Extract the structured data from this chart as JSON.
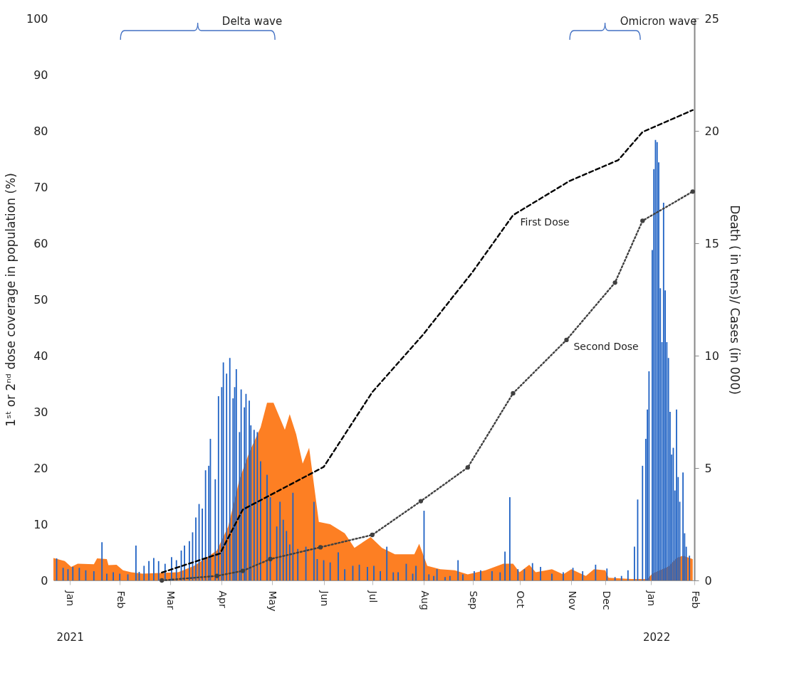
{
  "chart_data": {
    "type": "bar",
    "xlim": [
      "2021-01-01",
      "2022-02-01"
    ],
    "xticks": [
      {
        "value": "2021-01-11",
        "label": "Jan"
      },
      {
        "value": "2021-02-11",
        "label": "Feb"
      },
      {
        "value": "2021-03-14",
        "label": "Mar"
      },
      {
        "value": "2021-04-15",
        "label": "Apr"
      },
      {
        "value": "2021-05-16",
        "label": "May"
      },
      {
        "value": "2021-06-17",
        "label": "Jun"
      },
      {
        "value": "2021-07-17",
        "label": "Jul"
      },
      {
        "value": "2021-08-18",
        "label": "Aug"
      },
      {
        "value": "2021-09-17",
        "label": "Sep"
      },
      {
        "value": "2021-10-16",
        "label": "Oct"
      },
      {
        "value": "2021-11-17",
        "label": "Nov"
      },
      {
        "value": "2021-12-08",
        "label": "Dec"
      },
      {
        "value": "2022-01-05",
        "label": "Jan"
      },
      {
        "value": "2022-02-01",
        "label": "Feb"
      }
    ],
    "ylabel": "1ˢᵗ or 2ⁿᵈ dose coverage in population (%)",
    "y2label": "Death ( in tens)/ Cases (in 000)",
    "ylim": [
      0,
      100
    ],
    "yticks": [
      0,
      10,
      20,
      30,
      40,
      50,
      60,
      70,
      80,
      90,
      100
    ],
    "y2lim": [
      0,
      25
    ],
    "y2ticks": [
      0,
      5,
      10,
      15,
      20,
      25
    ],
    "series": [
      {
        "type": "area",
        "axis": "y2",
        "color": "#fd7f23",
        "x": [
          "2021-01-01",
          "2021-01-08",
          "2021-01-12",
          "2021-01-16",
          "2021-01-26",
          "2021-01-28",
          "2021-02-03",
          "2021-02-04",
          "2021-02-09",
          "2021-02-13",
          "2021-02-18",
          "2021-02-25",
          "2021-03-19",
          "2021-03-29",
          "2021-04-12",
          "2021-04-19",
          "2021-04-26",
          "2021-05-02",
          "2021-05-09",
          "2021-05-13",
          "2021-05-17",
          "2021-05-24",
          "2021-05-27",
          "2021-05-31",
          "2021-06-04",
          "2021-06-08",
          "2021-06-14",
          "2021-06-21",
          "2021-06-30",
          "2021-07-06",
          "2021-07-16",
          "2021-07-23",
          "2021-07-31",
          "2021-08-12",
          "2021-08-15",
          "2021-08-20",
          "2021-08-28",
          "2021-09-06",
          "2021-09-14",
          "2021-09-25",
          "2021-10-06",
          "2021-10-12",
          "2021-10-16",
          "2021-10-22",
          "2021-10-26",
          "2021-11-05",
          "2021-11-12",
          "2021-11-17",
          "2021-11-26",
          "2021-12-01",
          "2021-12-08",
          "2021-12-10",
          "2021-12-24",
          "2022-01-03",
          "2022-01-06",
          "2022-01-16",
          "2022-01-21",
          "2022-01-25",
          "2022-01-31"
        ],
        "values": [
          1.0,
          0.86,
          0.6,
          0.74,
          0.72,
          0.98,
          0.95,
          0.68,
          0.7,
          0.45,
          0.36,
          0.3,
          0.36,
          0.65,
          1.33,
          2.4,
          4.5,
          5.7,
          6.8,
          7.9,
          7.9,
          6.7,
          7.4,
          6.5,
          5.2,
          5.9,
          2.6,
          2.5,
          2.1,
          1.45,
          1.93,
          1.45,
          1.16,
          1.16,
          1.63,
          0.65,
          0.5,
          0.45,
          0.27,
          0.45,
          0.74,
          0.74,
          0.36,
          0.7,
          0.36,
          0.5,
          0.27,
          0.5,
          0.2,
          0.5,
          0.45,
          0.12,
          0.06,
          0.06,
          0.3,
          0.62,
          1.0,
          1.1,
          0.95
        ]
      },
      {
        "axis": "y2",
        "color": "#1f62c4",
        "x": [
          "2021-01-03",
          "2021-01-07",
          "2021-01-10",
          "2021-01-13",
          "2021-01-17",
          "2021-01-21",
          "2021-01-26",
          "2021-01-31",
          "2021-02-03",
          "2021-02-07",
          "2021-02-11",
          "2021-02-16",
          "2021-02-21",
          "2021-02-23",
          "2021-02-26",
          "2021-03-01",
          "2021-03-04",
          "2021-03-07",
          "2021-03-11",
          "2021-03-15",
          "2021-03-18",
          "2021-03-21",
          "2021-03-23",
          "2021-03-26",
          "2021-03-28",
          "2021-03-30",
          "2021-04-01",
          "2021-04-03",
          "2021-04-05",
          "2021-04-07",
          "2021-04-08",
          "2021-04-11",
          "2021-04-13",
          "2021-04-15",
          "2021-04-16",
          "2021-04-18",
          "2021-04-20",
          "2021-04-22",
          "2021-04-23",
          "2021-04-24",
          "2021-04-26",
          "2021-04-27",
          "2021-04-29",
          "2021-04-30",
          "2021-05-02",
          "2021-05-03",
          "2021-05-05",
          "2021-05-07",
          "2021-05-09",
          "2021-05-13",
          "2021-05-15",
          "2021-05-19",
          "2021-05-21",
          "2021-05-23",
          "2021-05-25",
          "2021-05-27",
          "2021-05-29",
          "2021-06-01",
          "2021-06-06",
          "2021-06-11",
          "2021-06-13",
          "2021-06-17",
          "2021-06-21",
          "2021-06-26",
          "2021-06-30",
          "2021-07-05",
          "2021-07-09",
          "2021-07-14",
          "2021-07-18",
          "2021-07-22",
          "2021-07-26",
          "2021-07-30",
          "2021-08-02",
          "2021-08-07",
          "2021-08-11",
          "2021-08-13",
          "2021-08-18",
          "2021-08-21",
          "2021-08-24",
          "2021-08-26",
          "2021-08-31",
          "2021-09-03",
          "2021-09-08",
          "2021-09-11",
          "2021-09-18",
          "2021-09-22",
          "2021-09-29",
          "2021-10-04",
          "2021-10-07",
          "2021-10-10",
          "2021-10-15",
          "2021-10-19",
          "2021-10-24",
          "2021-10-29",
          "2021-11-05",
          "2021-11-12",
          "2021-11-18",
          "2021-11-24",
          "2021-12-02",
          "2021-12-09",
          "2021-12-14",
          "2021-12-18",
          "2021-12-22",
          "2021-12-26",
          "2021-12-28",
          "2021-12-31",
          "2022-01-02",
          "2022-01-03",
          "2022-01-04",
          "2022-01-06",
          "2022-01-07",
          "2022-01-08",
          "2022-01-09",
          "2022-01-10",
          "2022-01-11",
          "2022-01-12",
          "2022-01-13",
          "2022-01-14",
          "2022-01-15",
          "2022-01-16",
          "2022-01-17",
          "2022-01-18",
          "2022-01-19",
          "2022-01-20",
          "2022-01-21",
          "2022-01-22",
          "2022-01-23",
          "2022-01-25",
          "2022-01-26",
          "2022-01-27",
          "2022-01-29"
        ],
        "values": [
          0.98,
          0.56,
          0.5,
          0.6,
          0.56,
          0.45,
          0.41,
          1.7,
          0.3,
          0.36,
          0.3,
          0.27,
          1.55,
          0.38,
          0.65,
          0.86,
          1.0,
          0.86,
          0.74,
          1.04,
          0.9,
          1.33,
          1.55,
          1.75,
          2.14,
          2.8,
          3.4,
          3.2,
          4.9,
          5.1,
          6.3,
          4.5,
          8.2,
          8.6,
          9.7,
          9.2,
          9.9,
          8.1,
          8.6,
          9.4,
          6.6,
          8.5,
          7.7,
          8.3,
          8.0,
          6.9,
          6.7,
          6.6,
          5.3,
          4.7,
          3.7,
          2.4,
          3.5,
          2.7,
          2.2,
          1.6,
          3.9,
          1.4,
          1.5,
          3.5,
          0.95,
          0.9,
          0.8,
          1.25,
          0.5,
          0.65,
          0.7,
          0.6,
          0.65,
          0.41,
          1.5,
          0.36,
          0.36,
          0.74,
          0.3,
          0.65,
          3.1,
          0.27,
          0.2,
          0.5,
          0.15,
          0.2,
          0.9,
          0.27,
          0.41,
          0.45,
          0.41,
          0.36,
          1.28,
          3.7,
          0.5,
          0.5,
          0.77,
          0.6,
          0.3,
          0.36,
          0.56,
          0.41,
          0.7,
          0.53,
          0.15,
          0.2,
          0.45,
          1.5,
          3.6,
          5.1,
          6.3,
          7.6,
          9.3,
          14.7,
          18.3,
          19.6,
          19.5,
          18.6,
          13.0,
          10.6,
          16.8,
          12.9,
          10.6,
          9.9,
          7.5,
          5.6,
          5.9,
          4.0,
          7.6,
          4.6,
          3.5,
          4.8,
          2.1,
          1.5,
          1.1
        ]
      },
      {
        "type": "line",
        "name": "First Dose",
        "color": "#000000",
        "line_style": "dashed",
        "x": [
          "2021-03-09",
          "2021-04-14",
          "2021-04-28",
          "2021-06-17",
          "2021-07-17",
          "2021-08-17",
          "2021-09-17",
          "2021-10-12",
          "2021-11-16",
          "2021-12-16",
          "2021-12-31",
          "2022-01-31"
        ],
        "values": [
          1.4,
          4.8,
          12.6,
          20.2,
          33.5,
          43.6,
          54.9,
          65,
          71.1,
          74.8,
          79.8,
          83.7
        ]
      },
      {
        "type": "line",
        "name": "Second Dose",
        "color": "#404040",
        "line_style": "dotted",
        "marker": "circle",
        "x": [
          "2021-03-09",
          "2021-04-12",
          "2021-04-28",
          "2021-05-15",
          "2021-06-15",
          "2021-07-17",
          "2021-08-16",
          "2021-09-14",
          "2021-10-12",
          "2021-11-14",
          "2021-12-14",
          "2021-12-31",
          "2022-01-31"
        ],
        "values": [
          0,
          0.8,
          1.7,
          3.8,
          5.9,
          8.1,
          14.1,
          20.1,
          33.3,
          42.8,
          53.0,
          64.0,
          69.2
        ]
      }
    ],
    "annotations": [
      "Delta wave",
      "Omicron wave",
      "2021",
      "2022"
    ]
  }
}
